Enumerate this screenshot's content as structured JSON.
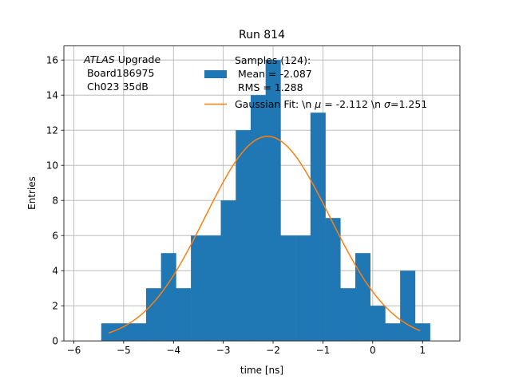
{
  "chart_data": {
    "type": "bar",
    "title": "Run 814",
    "xlabel": "time [ns]",
    "ylabel": "Entries",
    "xlim": [
      -6.2,
      1.75
    ],
    "ylim": [
      0,
      16.8
    ],
    "xticks": [
      -6,
      -5,
      -4,
      -3,
      -2,
      -1,
      0,
      1
    ],
    "xtick_labels": [
      "−6",
      "−5",
      "−4",
      "−3",
      "−2",
      "−1",
      "0",
      "1"
    ],
    "yticks": [
      0,
      2,
      4,
      6,
      8,
      10,
      12,
      14,
      16
    ],
    "ytick_labels": [
      "0",
      "2",
      "4",
      "6",
      "8",
      "10",
      "12",
      "14",
      "16"
    ],
    "grid": true,
    "annotation": {
      "italic_part": "ATLAS",
      "line1_rest": " Upgrade",
      "line2": " Board186975",
      "line3": " Ch023 35dB"
    },
    "histogram": {
      "name_lines": [
        "Samples (124):",
        " Mean = -2.087",
        " RMS = 1.288"
      ],
      "color": "#1f77b4",
      "bin_edges": [
        -5.45,
        -5.15,
        -4.85,
        -4.55,
        -4.25,
        -3.95,
        -3.65,
        -3.35,
        -3.05,
        -2.75,
        -2.45,
        -2.15,
        -1.85,
        -1.55,
        -1.25,
        -0.95,
        -0.65,
        -0.35,
        -0.05,
        0.25,
        0.55,
        0.85,
        1.15
      ],
      "counts": [
        1,
        1,
        1,
        3,
        5,
        3,
        6,
        6,
        8,
        12,
        14,
        16,
        6,
        6,
        13,
        7,
        3,
        5,
        2,
        1,
        4,
        1
      ]
    },
    "fit": {
      "legend_label": "Gaussian Fit: \\n $\\mu$ = -2.112 \\n $\\sigma$=1.251",
      "legend_prefix": "Gaussian Fit: \\n ",
      "legend_mu": "μ",
      "legend_middle": " = -2.112 \\n ",
      "legend_sigma": "σ",
      "legend_suffix": "=1.251",
      "color": "#ff7f0e",
      "mu": -2.112,
      "sigma": 1.251,
      "amplitude": 11.65,
      "x_range": [
        -5.3,
        0.95
      ]
    },
    "legend_location": "upper center"
  }
}
